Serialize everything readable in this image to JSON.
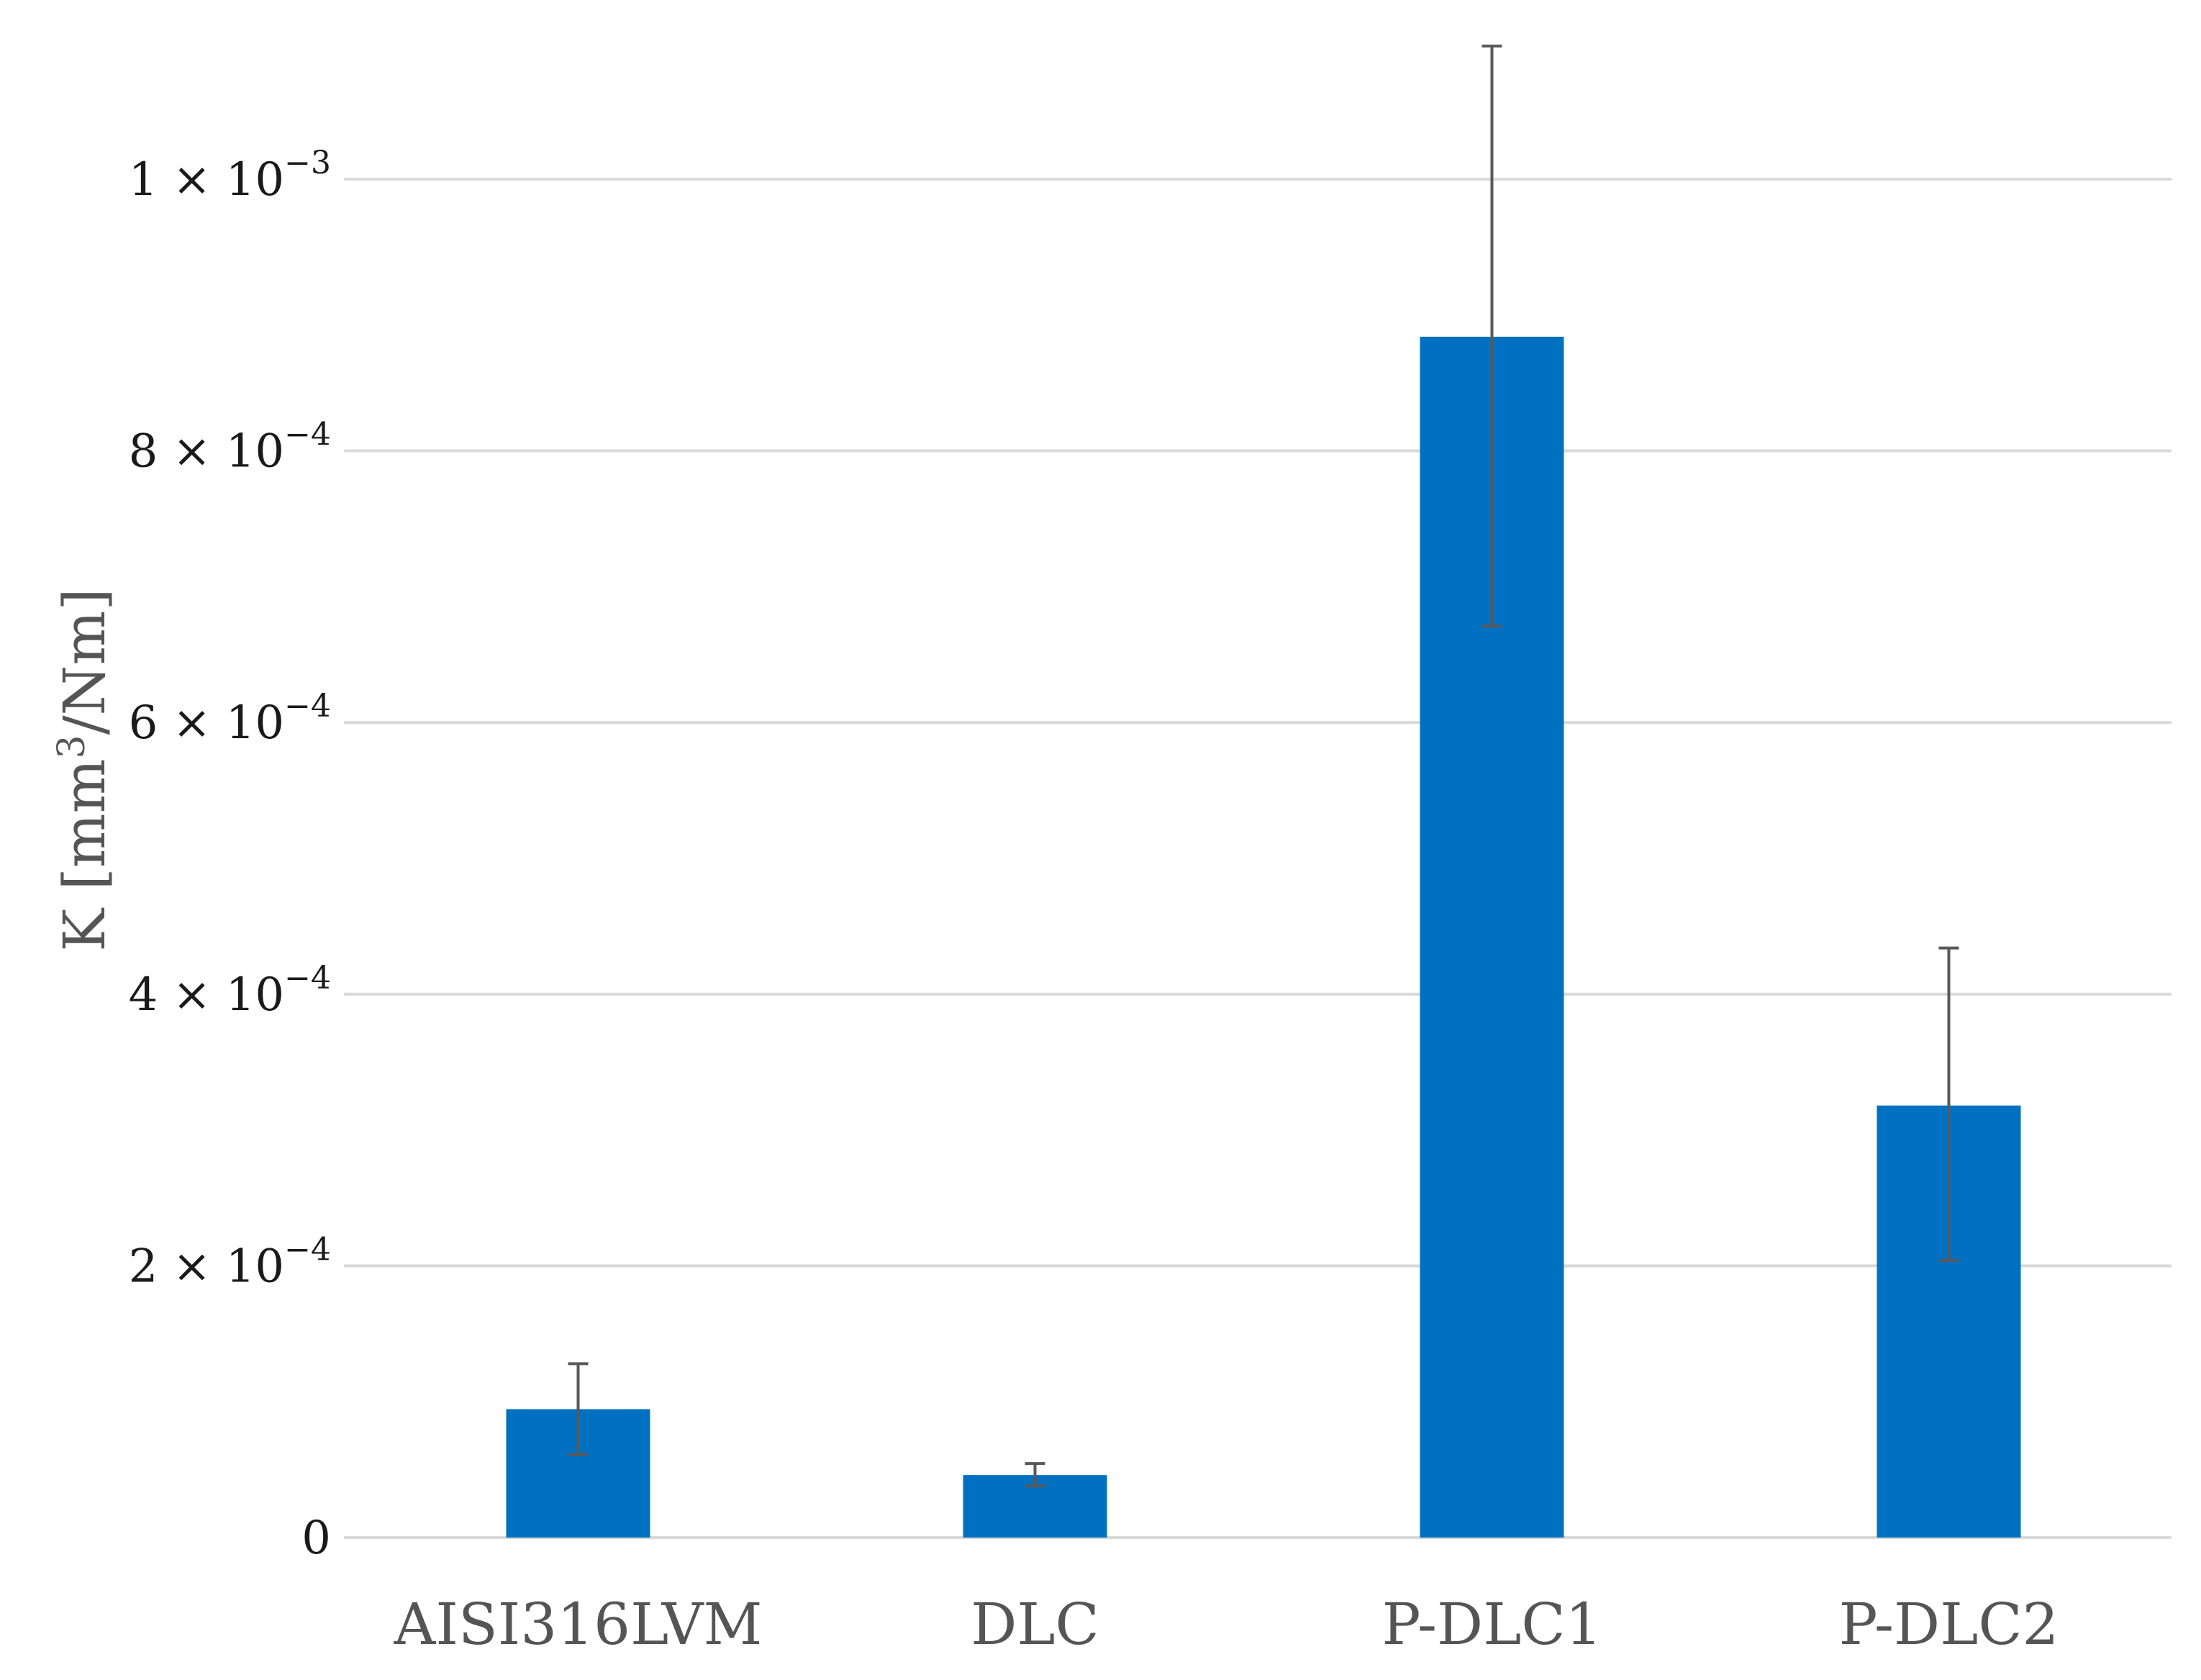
{
  "chart_data": {
    "type": "bar",
    "title": "",
    "xlabel": "",
    "ylabel": "K [mm³/Nm]",
    "ylabel_parts": {
      "pre": "K [mm",
      "sup": "3",
      "post": "/Nm]"
    },
    "ylim": [
      0,
      0.00114
    ],
    "grid": true,
    "bar_color": "#0070C0",
    "gridline_color": "#d9d9d9",
    "errorbar_color": "#595959",
    "categories": [
      "AISI316LVM",
      "DLC",
      "P-DLC1",
      "P-DLC2"
    ],
    "series": [
      {
        "values": [
          9.45e-05,
          4.6e-05,
          0.000884,
          0.000318
        ],
        "error_low": [
          6.1e-05,
          3.8e-05,
          0.000671,
          0.000204
        ],
        "error_high": [
          0.000128,
          5.45e-05,
          0.001098,
          0.000434
        ]
      }
    ],
    "yticks": [
      {
        "value": 0,
        "mantissa": "0",
        "exponent": ""
      },
      {
        "value": 0.0002,
        "mantissa": "2 × 10",
        "exponent": "−4"
      },
      {
        "value": 0.0004,
        "mantissa": "4 × 10",
        "exponent": "−4"
      },
      {
        "value": 0.0006,
        "mantissa": "6 × 10",
        "exponent": "−4"
      },
      {
        "value": 0.0008,
        "mantissa": "8 × 10",
        "exponent": "−4"
      },
      {
        "value": 0.001,
        "mantissa": "1 × 10",
        "exponent": "−3"
      }
    ]
  }
}
